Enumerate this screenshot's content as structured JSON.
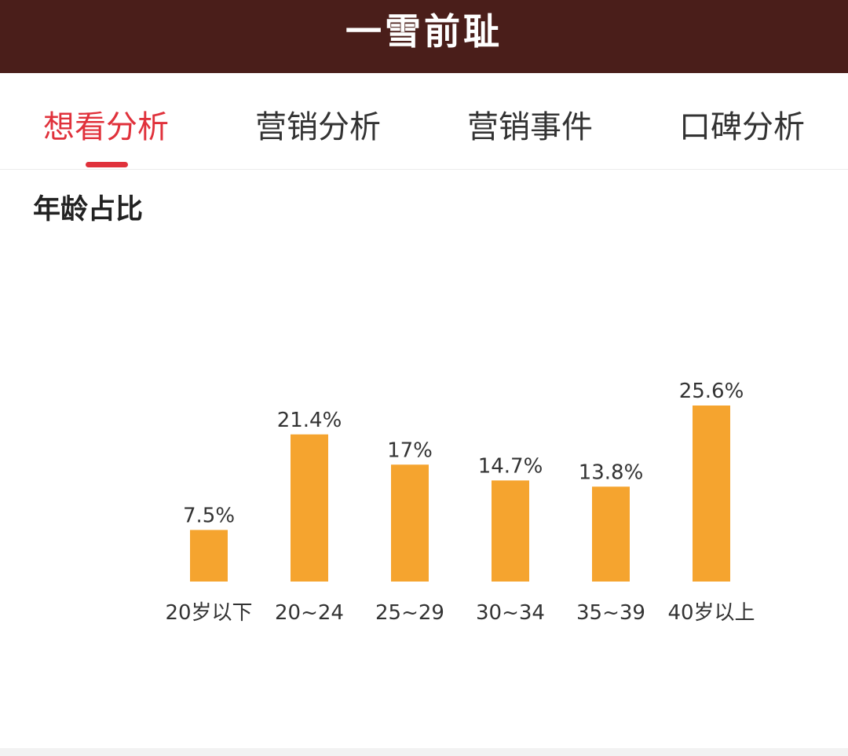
{
  "header": {
    "title": "一雪前耻"
  },
  "tabs": [
    {
      "label": "想看分析",
      "active": true
    },
    {
      "label": "营销分析",
      "active": false
    },
    {
      "label": "营销事件",
      "active": false
    },
    {
      "label": "口碑分析",
      "active": false
    }
  ],
  "section": {
    "title": "年龄占比"
  },
  "colors": {
    "accent": "#e0313b",
    "bar": "#f5a42f",
    "header_bg": "#4a1e1a"
  },
  "chart_data": {
    "type": "bar",
    "title": "年龄占比",
    "categories": [
      "20岁以下",
      "20~24",
      "25~29",
      "30~34",
      "35~39",
      "40岁以上"
    ],
    "values": [
      7.5,
      21.4,
      17,
      14.7,
      13.8,
      25.6
    ],
    "value_labels": [
      "7.5%",
      "21.4%",
      "17%",
      "14.7%",
      "13.8%",
      "25.6%"
    ],
    "ylim": [
      0,
      25.6
    ],
    "grid": false,
    "legend": "none"
  }
}
